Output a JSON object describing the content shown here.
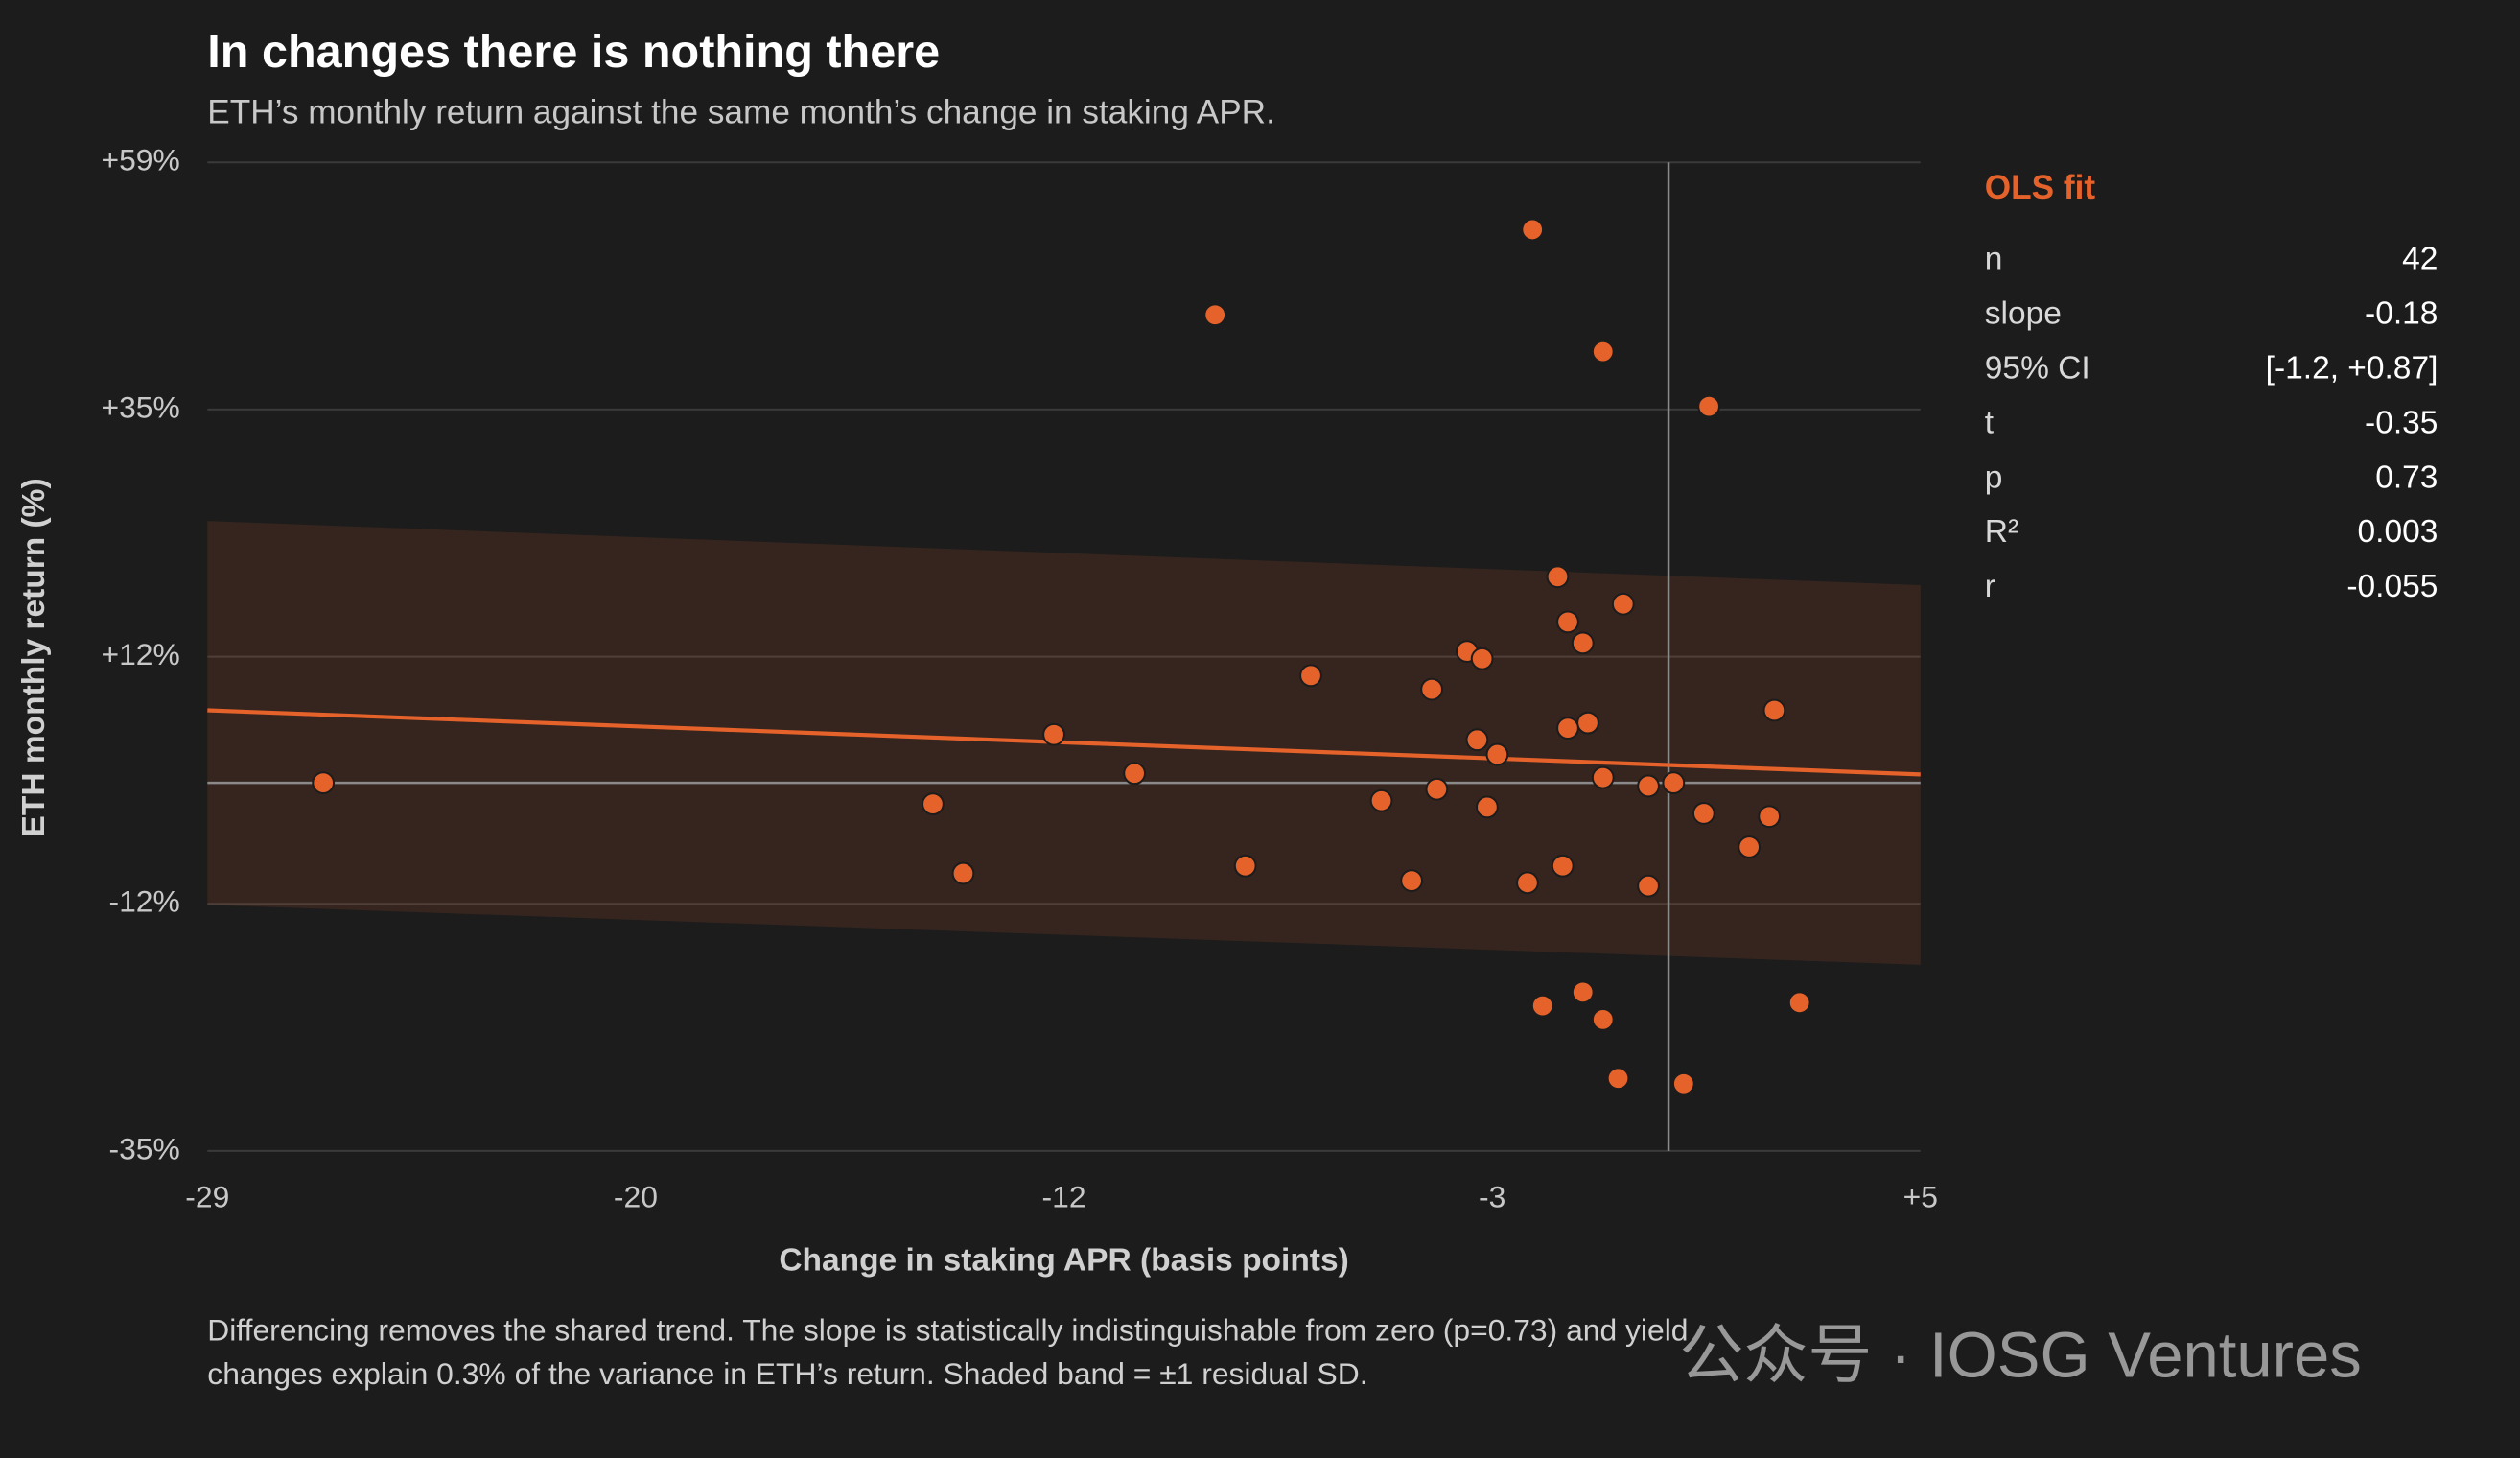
{
  "chart_data": {
    "type": "scatter",
    "title": "In changes there is nothing there",
    "subtitle": "ETH’s monthly return against the same month’s change in staking APR.",
    "x_label": "Change in staking APR (basis points)",
    "y_label": "ETH monthly return (%)",
    "color": "#e5622b",
    "x": [
      -2.7,
      -9.0,
      -1.3,
      0.8,
      -2.2,
      -0.9,
      -2.0,
      -1.7,
      -4.0,
      -3.7,
      -7.1,
      -4.7,
      2.1,
      -1.6,
      -2.0,
      -12.2,
      -3.8,
      -3.4,
      -10.6,
      -1.3,
      -26.7,
      -0.4,
      0.1,
      -4.6,
      -5.7,
      -14.6,
      -3.6,
      0.7,
      2.0,
      1.6,
      -2.1,
      -8.4,
      -14.0,
      -5.1,
      -2.8,
      -0.4,
      -1.7,
      -2.5,
      -1.3,
      2.6,
      -1.0,
      0.3
    ],
    "values": [
      52.6,
      44.5,
      41.0,
      35.8,
      19.6,
      17.0,
      15.3,
      13.3,
      12.5,
      11.8,
      10.2,
      8.9,
      6.9,
      5.7,
      5.2,
      4.6,
      4.1,
      2.7,
      0.9,
      0.5,
      0.0,
      -0.3,
      0.0,
      -0.6,
      -1.7,
      -2.0,
      -2.3,
      -2.9,
      -3.2,
      -6.1,
      -7.9,
      -7.9,
      -8.6,
      -9.3,
      -9.5,
      -9.8,
      -19.9,
      -21.2,
      -22.5,
      -20.9,
      -28.1,
      -28.6
    ],
    "fit": {
      "x": [
        -29,
        5
      ],
      "y": [
        6.9,
        0.8
      ],
      "band_upper": [
        24.9,
        18.8
      ],
      "band_lower": [
        -11.6,
        -17.3
      ],
      "color": "#e5622b"
    },
    "reference_lines": {
      "x": 0,
      "y": 0
    },
    "xlim": [
      -29,
      5
    ],
    "xticks": [
      -29,
      {
        "value": -20.5,
        "label": "-20"
      },
      -12,
      {
        "value": -3.5,
        "label": "-3"
      },
      {
        "value": 5,
        "label": "+5"
      }
    ],
    "ylim": [
      -35,
      59
    ],
    "yticks": [
      {
        "value": -35,
        "label": "-35%"
      },
      {
        "value": -11.5,
        "label": "-12%"
      },
      {
        "value": 12,
        "label": "+12%"
      },
      {
        "value": 35.5,
        "label": "+35%"
      },
      {
        "value": 59,
        "label": "+59%"
      }
    ],
    "grid": true,
    "stats": {
      "title": "OLS fit",
      "rows": [
        [
          "n",
          "42"
        ],
        [
          "slope",
          "-0.18"
        ],
        [
          "95% CI",
          "[-1.2, +0.87]"
        ],
        [
          "t",
          "-0.35"
        ],
        [
          "p",
          "0.73"
        ],
        [
          "R²",
          "0.003"
        ],
        [
          "r",
          "-0.055"
        ]
      ]
    },
    "note": [
      "Differencing removes the shared trend. The slope is statistically indistinguishable from zero (p=0.73) and yield",
      "changes explain 0.3% of the variance in ETH’s return. Shaded band = ±1 residual SD."
    ],
    "watermark": "公众号 · IOSG Ventures"
  }
}
